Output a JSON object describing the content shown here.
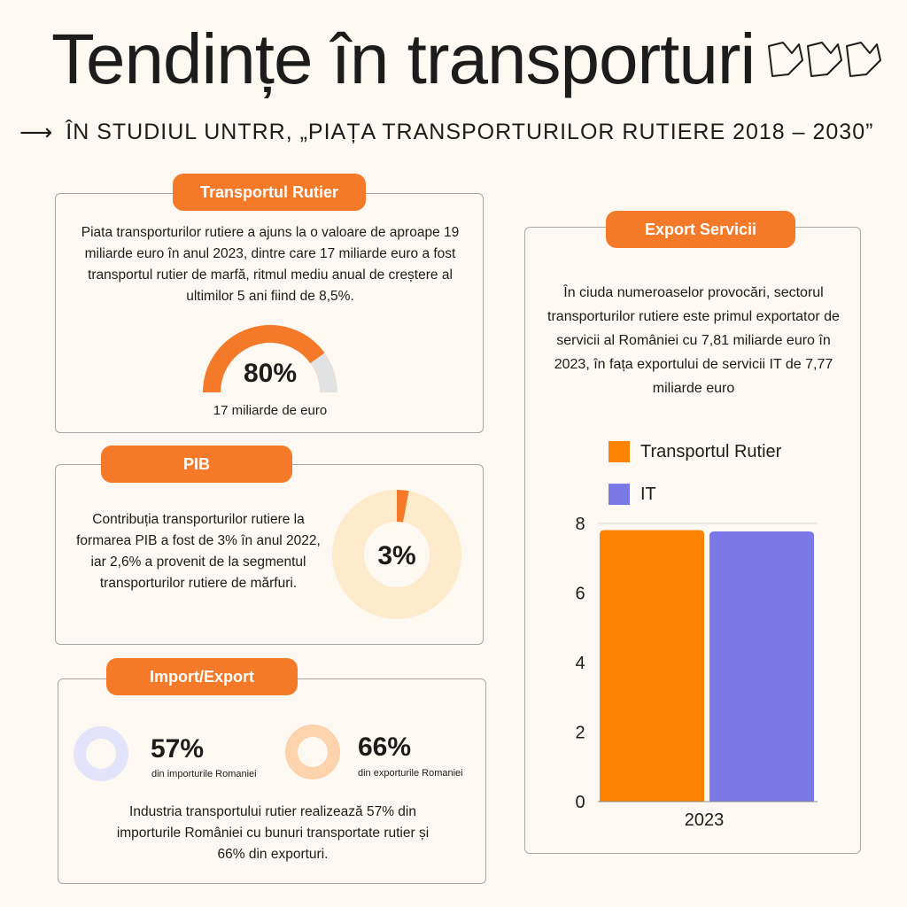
{
  "header": {
    "title": "Tendințe în transporturi",
    "subtitle": "ÎN STUDIUL UNTRR, „PIAȚA TRANSPORTURILOR RUTIERE 2018 – 2030”"
  },
  "road": {
    "label": "Transportul Rutier",
    "text": "Piata transporturilor rutiere a ajuns la o valoare de aproape 19 miliarde euro în anul 2023, dintre care 17 miliarde euro a fost transportul rutier de marfă, ritmul mediu anual de creștere al ultimilor 5 ani fiind de 8,5%.",
    "gauge_value": "80%",
    "gauge_fraction": 0.8,
    "gauge_caption": "17 miliarde de euro"
  },
  "gdp": {
    "label": "PIB",
    "text": "Contribuția transporturilor rutiere la formarea PIB a fost de 3% în anul 2022, iar 2,6% a provenit de la segmentul transporturilor rutiere de mărfuri.",
    "donut_value": "3%",
    "donut_fraction": 0.03
  },
  "trade": {
    "label": "Import/Export",
    "import_value": "57%",
    "import_caption": "din importurile Romaniei",
    "export_value": "66%",
    "export_caption": "din exporturile Romaniei",
    "text": "Industria transportului rutier realizează 57% din importurile României cu bunuri transportate rutier și 66% din exporturi."
  },
  "services": {
    "label": "Export Servicii",
    "text": "În ciuda numeroaselor provocări, sectorul transporturilor rutiere este primul exportator de servicii al României cu 7,81 miliarde euro în 2023, în fața exportului de servicii IT de 7,77 miliarde euro"
  },
  "colors": {
    "orange": "#f47a2a",
    "bar_orange": "#ff8200",
    "bar_purple": "#7b79e8",
    "donut_light": "#fdebcc",
    "gauge_track": "#e2e2e2",
    "import_ring": "#e3e3fb",
    "export_ring": "#fcd3ad"
  },
  "chart_data": {
    "type": "bar",
    "categories": [
      "2023"
    ],
    "series": [
      {
        "name": "Transportul Rutier",
        "values": [
          7.81
        ]
      },
      {
        "name": "IT",
        "values": [
          7.77
        ]
      }
    ],
    "ylim": [
      0,
      8
    ],
    "yticks": [
      "0",
      "2",
      "4",
      "6",
      "8"
    ],
    "legend": "top",
    "grid": false
  }
}
